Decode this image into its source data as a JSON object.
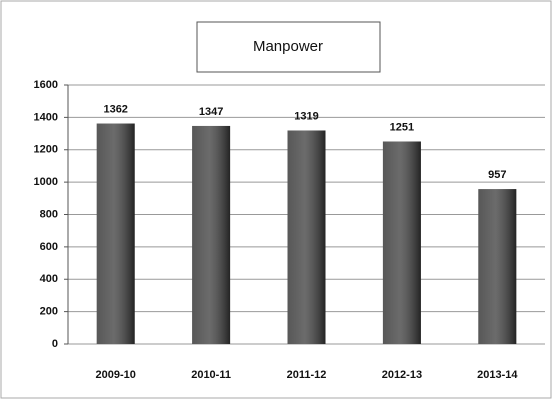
{
  "chart_data": {
    "type": "bar",
    "title": "Manpower",
    "categories": [
      "2009-10",
      "2010-11",
      "2011-12",
      "2012-13",
      "2013-14"
    ],
    "values": [
      1362,
      1347,
      1319,
      1251,
      957
    ],
    "color": "#3a3a3a",
    "ylim": [
      0,
      1600
    ],
    "yticks": [
      0,
      200,
      400,
      600,
      800,
      1000,
      1200,
      1400,
      1600
    ],
    "grid": true
  }
}
